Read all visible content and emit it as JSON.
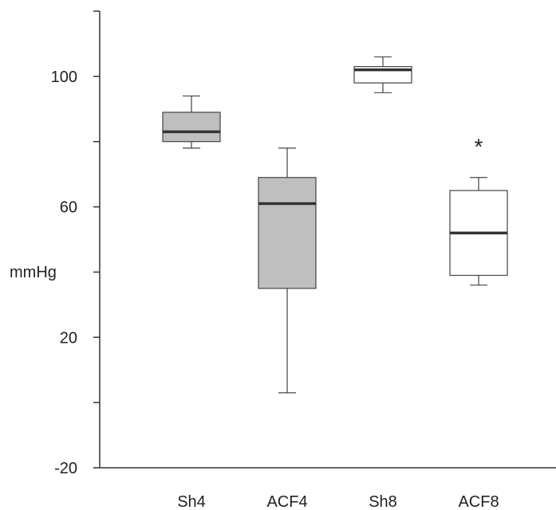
{
  "chart_data": {
    "type": "boxplot",
    "ylabel": "mmHg",
    "ylim": [
      -20,
      120
    ],
    "y_ticks": [
      -20,
      0,
      20,
      40,
      60,
      80,
      100,
      120
    ],
    "y_tick_labels": [
      {
        "value": -20,
        "label": "-20"
      },
      {
        "value": 20,
        "label": "20"
      },
      {
        "value": 60,
        "label": "60"
      },
      {
        "value": 100,
        "label": "100"
      }
    ],
    "categories": [
      "Sh4",
      "ACF4",
      "Sh8",
      "ACF8"
    ],
    "boxes": [
      {
        "category": "Sh4",
        "whisker_low": 78,
        "q1": 80,
        "median": 83,
        "q3": 89,
        "whisker_high": 94,
        "fill": "#bfbfbf"
      },
      {
        "category": "ACF4",
        "whisker_low": 3,
        "q1": 35,
        "median": 61,
        "q3": 69,
        "whisker_high": 78,
        "fill": "#bfbfbf"
      },
      {
        "category": "Sh8",
        "whisker_low": 95,
        "q1": 98,
        "median": 102,
        "q3": 103,
        "whisker_high": 106,
        "fill": "#ffffff"
      },
      {
        "category": "ACF8",
        "whisker_low": 36,
        "q1": 39,
        "median": 52,
        "q3": 65,
        "whisker_high": 69,
        "fill": "#ffffff"
      }
    ],
    "annotations": [
      {
        "category": "ACF8",
        "text": "*",
        "y": 80
      }
    ],
    "grid": false,
    "legend": "none"
  }
}
